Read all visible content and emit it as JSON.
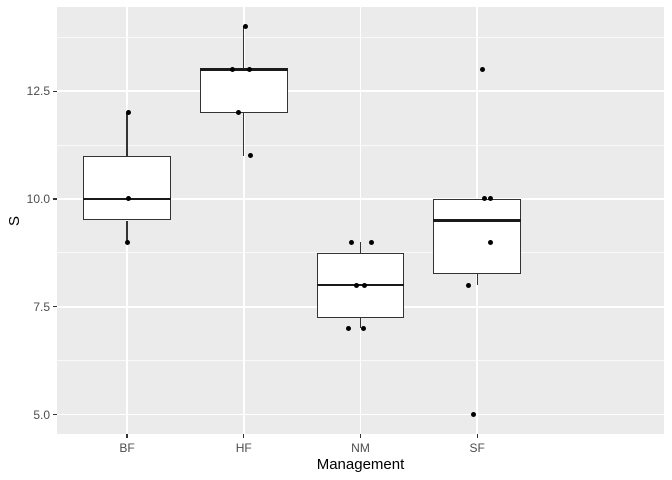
{
  "chart_data": {
    "type": "boxplot",
    "title": "",
    "xlabel": "Management",
    "ylabel": "S",
    "categories": [
      "BF",
      "HF",
      "NM",
      "SF"
    ],
    "ylim": [
      4.55,
      14.45
    ],
    "y_ticks": [
      5.0,
      7.5,
      10.0,
      12.5
    ],
    "y_tick_labels": [
      "5.0",
      "7.5",
      "10.0",
      "12.5"
    ],
    "y_minor_gridlines": [
      6.25,
      8.75,
      11.25,
      13.75
    ],
    "grid": "on",
    "legend": "none",
    "box_width_units": 0.75,
    "x_expand_units": 0.6,
    "series": [
      {
        "category": "BF",
        "values": [
          9,
          10,
          12
        ],
        "q1": 9.5,
        "median": 10,
        "q3": 11,
        "whisker_low": 9,
        "whisker_high": 12,
        "outliers": [],
        "points": [
          {
            "value": 12,
            "dx": 1.5
          },
          {
            "value": 10,
            "dx": 1.5
          },
          {
            "value": 9,
            "dx": 0.5
          }
        ]
      },
      {
        "category": "HF",
        "values": [
          11,
          12,
          13,
          13,
          14
        ],
        "q1": 12,
        "median": 13,
        "q3": 13,
        "whisker_low": 11,
        "whisker_high": 14,
        "outliers": [],
        "points": [
          {
            "value": 14,
            "dx": 1.8
          },
          {
            "value": 13,
            "dx": -11.5
          },
          {
            "value": 13,
            "dx": 5.5
          },
          {
            "value": 12,
            "dx": -4.9
          },
          {
            "value": 11,
            "dx": 6.5
          }
        ]
      },
      {
        "category": "NM",
        "values": [
          7,
          7,
          8,
          8,
          9,
          9
        ],
        "q1": 7.25,
        "median": 8,
        "q3": 8.75,
        "whisker_low": 7,
        "whisker_high": 9,
        "outliers": [],
        "points": [
          {
            "value": 9,
            "dx": -8.6
          },
          {
            "value": 9,
            "dx": 11.4
          },
          {
            "value": 8,
            "dx": -3.9
          },
          {
            "value": 8,
            "dx": 3.8
          },
          {
            "value": 7,
            "dx": -11.6
          },
          {
            "value": 7,
            "dx": 2.8
          }
        ]
      },
      {
        "category": "SF",
        "values": [
          5,
          8,
          9,
          10,
          10,
          13
        ],
        "q1": 8.25,
        "median": 9.5,
        "q3": 10,
        "whisker_low": 8,
        "whisker_high": 10,
        "outliers": [
          13,
          5
        ],
        "points": [
          {
            "value": 13,
            "dx": 5.7
          },
          {
            "value": 10,
            "dx": 7.4
          },
          {
            "value": 10,
            "dx": 12.9
          },
          {
            "value": 9,
            "dx": 13.1
          },
          {
            "value": 8,
            "dx": -8.3
          },
          {
            "value": 5,
            "dx": -3.3
          }
        ]
      }
    ]
  },
  "colors": {
    "panel_background": "#EBEBEB",
    "grid_major": "#FFFFFF",
    "grid_minor": "#FFFFFF",
    "box_fill": "#FFFFFF",
    "box_border": "#333333",
    "median_line": "#1A1A1A",
    "whisker": "#333333",
    "point": "#000000",
    "tick_mark": "#333333",
    "tick_text": "#4D4D4D",
    "axis_title_text": "#000000",
    "outer_background": "#FFFFFF"
  }
}
